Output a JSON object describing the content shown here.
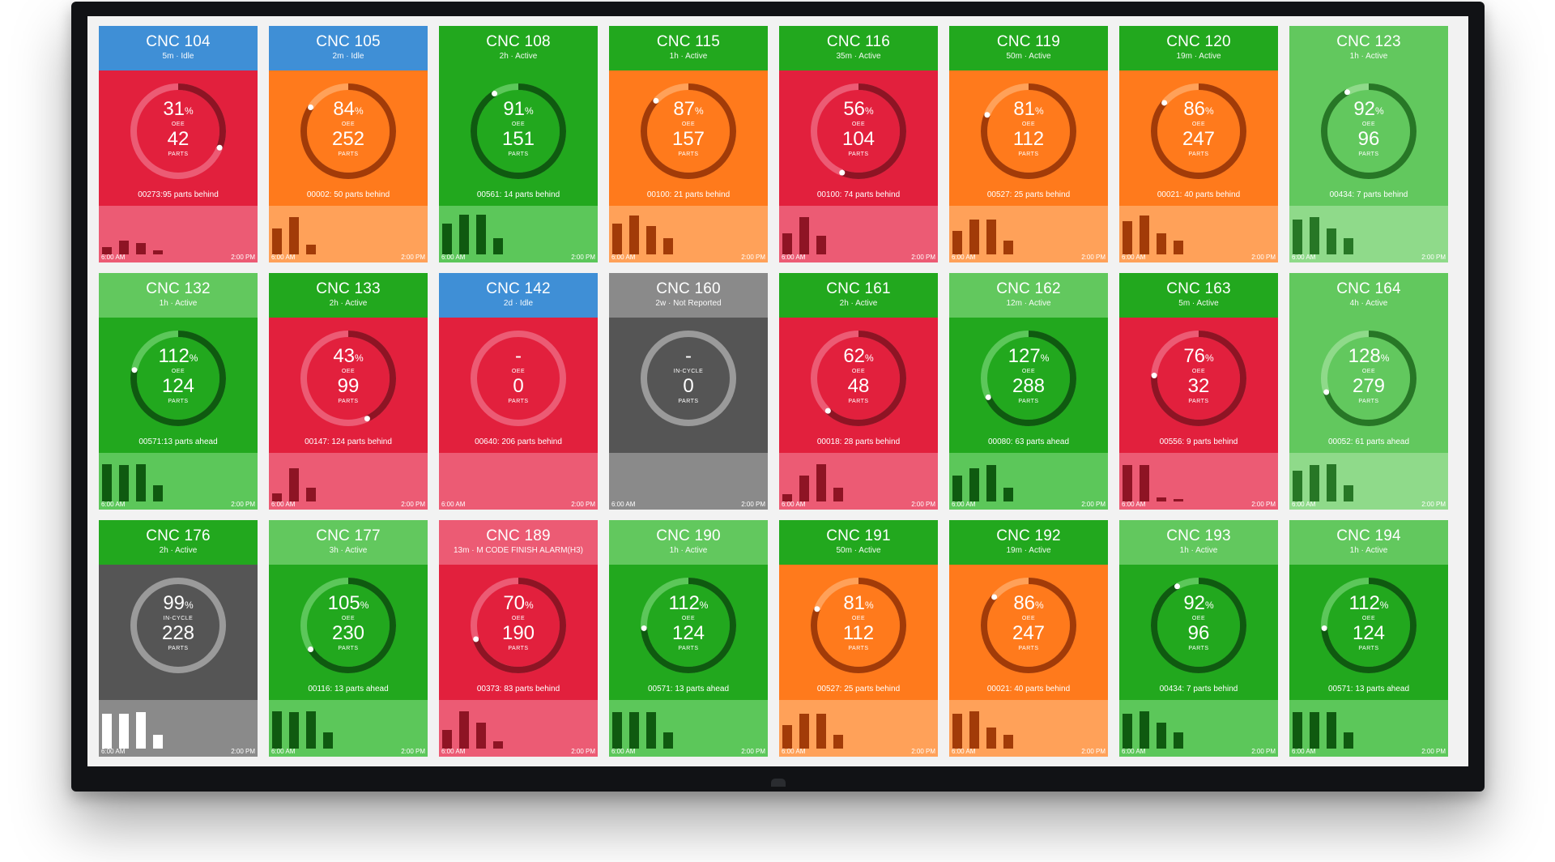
{
  "palette": {
    "red": [
      "#e2203d",
      "#ec5b74",
      "#8e1424"
    ],
    "orange": [
      "#ff7a1c",
      "#ffa159",
      "#a23b08"
    ],
    "green": [
      "#22a81e",
      "#5cc75a",
      "#0f5a10"
    ],
    "lightgreen": [
      "#62c85e",
      "#8fda8a",
      "#277726"
    ],
    "blue": [
      "#3f8fd6"
    ],
    "gray": [
      "#555555",
      "#8a8a8a",
      "#ffffff"
    ]
  },
  "tiles": [
    {
      "name": "CNC 104",
      "status": "5m · Idle",
      "header": "blue",
      "body": "red",
      "oee": "31",
      "oee_label": "OEE",
      "parts": "42",
      "parts_label": "PARTS",
      "behind": "00273:95 parts behind",
      "progress": 0.31,
      "bars": [
        0.15,
        0.3,
        0.25,
        0.08
      ],
      "start": "6:00 AM",
      "end": "2:00 PM"
    },
    {
      "name": "CNC 105",
      "status": "2m · Idle",
      "header": "blue",
      "body": "orange",
      "oee": "84",
      "oee_label": "OEE",
      "parts": "252",
      "parts_label": "PARTS",
      "behind": "00002: 50 parts behind",
      "progress": 0.84,
      "bars": [
        0.55,
        0.8,
        0.2,
        0
      ],
      "start": "6:00 AM",
      "end": "2:00 PM"
    },
    {
      "name": "CNC 108",
      "status": "2h · Active",
      "header": "green",
      "body": "green",
      "oee": "91",
      "oee_label": "OEE",
      "parts": "151",
      "parts_label": "PARTS",
      "behind": "00561: 14 parts behind",
      "progress": 0.91,
      "bars": [
        0.65,
        0.85,
        0.85,
        0.35
      ],
      "start": "6:00 AM",
      "end": "2:00 PM"
    },
    {
      "name": "CNC 115",
      "status": "1h · Active",
      "header": "green",
      "body": "orange",
      "oee": "87",
      "oee_label": "OEE",
      "parts": "157",
      "parts_label": "PARTS",
      "behind": "00100: 21 parts behind",
      "progress": 0.87,
      "bars": [
        0.65,
        0.82,
        0.6,
        0.35
      ],
      "start": "6:00 AM",
      "end": "2:00 PM"
    },
    {
      "name": "CNC 116",
      "status": "35m · Active",
      "header": "green",
      "body": "red",
      "oee": "56",
      "oee_label": "OEE",
      "parts": "104",
      "parts_label": "PARTS",
      "behind": "00100: 74 parts behind",
      "progress": 0.56,
      "bars": [
        0.45,
        0.8,
        0.4,
        0
      ],
      "start": "6:00 AM",
      "end": "2:00 PM"
    },
    {
      "name": "CNC 119",
      "status": "50m · Active",
      "header": "green",
      "body": "orange",
      "oee": "81",
      "oee_label": "OEE",
      "parts": "112",
      "parts_label": "PARTS",
      "behind": "00527: 25 parts behind",
      "progress": 0.81,
      "bars": [
        0.5,
        0.75,
        0.75,
        0.3
      ],
      "start": "6:00 AM",
      "end": "2:00 PM"
    },
    {
      "name": "CNC 120",
      "status": "19m · Active",
      "header": "green",
      "body": "orange",
      "oee": "86",
      "oee_label": "OEE",
      "parts": "247",
      "parts_label": "PARTS",
      "behind": "00021: 40 parts behind",
      "progress": 0.86,
      "bars": [
        0.7,
        0.82,
        0.45,
        0.3
      ],
      "start": "6:00 AM",
      "end": "2:00 PM"
    },
    {
      "name": "CNC 123",
      "status": "1h · Active",
      "header": "lightgreen",
      "body": "lightgreen",
      "oee": "92",
      "oee_label": "OEE",
      "parts": "96",
      "parts_label": "PARTS",
      "behind": "00434: 7 parts behind",
      "progress": 0.92,
      "bars": [
        0.75,
        0.8,
        0.55,
        0.35
      ],
      "start": "6:00 AM",
      "end": "2:00 PM"
    },
    {
      "name": "CNC 132",
      "status": "1h · Active",
      "header": "lightgreen",
      "body": "green",
      "oee": "112",
      "oee_label": "OEE",
      "parts": "124",
      "parts_label": "PARTS",
      "behind": "00571:13 parts ahead",
      "progress": 0.78,
      "bars": [
        0.8,
        0.78,
        0.8,
        0.35
      ],
      "start": "6:00 AM",
      "end": "2:00 PM"
    },
    {
      "name": "CNC 133",
      "status": "2h · Active",
      "header": "green",
      "body": "red",
      "oee": "43",
      "oee_label": "OEE",
      "parts": "99",
      "parts_label": "PARTS",
      "behind": "00147: 124 parts behind",
      "progress": 0.43,
      "bars": [
        0.18,
        0.7,
        0.3,
        0
      ],
      "start": "6:00 AM",
      "end": "2:00 PM"
    },
    {
      "name": "CNC 142",
      "status": "2d · Idle",
      "header": "blue",
      "body": "red",
      "oee": "-",
      "oee_label": "OEE",
      "parts": "0",
      "parts_label": "PARTS",
      "behind": "00640: 206 parts behind",
      "progress": 0,
      "bars": [
        0,
        0,
        0,
        0
      ],
      "start": "6:00 AM",
      "end": "2:00 PM"
    },
    {
      "name": "CNC 160",
      "status": "2w · Not Reported",
      "header": "gray2",
      "body": "gray",
      "oee": "-",
      "oee_label": "IN-CYCLE",
      "parts": "0",
      "parts_label": "PARTS",
      "behind": "",
      "progress": 0,
      "bars": [
        0,
        0,
        0,
        0
      ],
      "start": "6:00 AM",
      "end": "2:00 PM"
    },
    {
      "name": "CNC 161",
      "status": "2h · Active",
      "header": "green",
      "body": "red",
      "oee": "62",
      "oee_label": "OEE",
      "parts": "48",
      "parts_label": "PARTS",
      "behind": "00018: 28 parts behind",
      "progress": 0.62,
      "bars": [
        0.15,
        0.55,
        0.8,
        0.3
      ],
      "start": "6:00 AM",
      "end": "2:00 PM"
    },
    {
      "name": "CNC 162",
      "status": "12m · Active",
      "header": "lightgreen",
      "body": "green",
      "oee": "127",
      "oee_label": "OEE",
      "parts": "288",
      "parts_label": "PARTS",
      "behind": "00080: 63 parts ahead",
      "progress": 0.68,
      "bars": [
        0.55,
        0.7,
        0.78,
        0.3
      ],
      "start": "6:00 AM",
      "end": "2:00 PM"
    },
    {
      "name": "CNC 163",
      "status": "5m · Active",
      "header": "green",
      "body": "red",
      "oee": "76",
      "oee_label": "OEE",
      "parts": "32",
      "parts_label": "PARTS",
      "behind": "00556: 9 parts behind",
      "progress": 0.76,
      "bars": [
        0.78,
        0.78,
        0.08,
        0.05
      ],
      "start": "6:00 AM",
      "end": "2:00 PM"
    },
    {
      "name": "CNC 164",
      "status": "4h · Active",
      "header": "lightgreen",
      "body": "lightgreen",
      "oee": "128",
      "oee_label": "OEE",
      "parts": "279",
      "parts_label": "PARTS",
      "behind": "00052: 61 parts ahead",
      "progress": 0.7,
      "bars": [
        0.65,
        0.78,
        0.8,
        0.35
      ],
      "start": "6:00 AM",
      "end": "2:00 PM"
    },
    {
      "name": "CNC 176",
      "status": "2h · Active",
      "header": "green",
      "body": "gray",
      "oee": "99",
      "oee_label": "IN-CYCLE",
      "parts": "228",
      "parts_label": "PARTS",
      "behind": "",
      "progress": 0,
      "bars": [
        0.75,
        0.75,
        0.78,
        0.3
      ],
      "start": "6:00 AM",
      "end": "2:00 PM"
    },
    {
      "name": "CNC 177",
      "status": "3h · Active",
      "header": "lightgreen",
      "body": "green",
      "oee": "105",
      "oee_label": "OEE",
      "parts": "230",
      "parts_label": "PARTS",
      "behind": "00116: 13 parts ahead",
      "progress": 0.66,
      "bars": [
        0.8,
        0.78,
        0.8,
        0.35
      ],
      "start": "6:00 AM",
      "end": "2:00 PM"
    },
    {
      "name": "CNC 189",
      "status": "13m · M CODE FINISH ALARM(H3)",
      "header": "red2",
      "body": "red",
      "oee": "70",
      "oee_label": "OEE",
      "parts": "190",
      "parts_label": "PARTS",
      "behind": "00373: 83 parts behind",
      "progress": 0.7,
      "bars": [
        0.4,
        0.8,
        0.55,
        0.15
      ],
      "start": "6:00 AM",
      "end": "2:00 PM"
    },
    {
      "name": "CNC 190",
      "status": "1h · Active",
      "header": "lightgreen",
      "body": "green",
      "oee": "112",
      "oee_label": "OEE",
      "parts": "124",
      "parts_label": "PARTS",
      "behind": "00571: 13 parts ahead",
      "progress": 0.74,
      "bars": [
        0.78,
        0.78,
        0.78,
        0.35
      ],
      "start": "6:00 AM",
      "end": "2:00 PM"
    },
    {
      "name": "CNC 191",
      "status": "50m · Active",
      "header": "green",
      "body": "orange",
      "oee": "81",
      "oee_label": "OEE",
      "parts": "112",
      "parts_label": "PARTS",
      "behind": "00527: 25 parts behind",
      "progress": 0.81,
      "bars": [
        0.5,
        0.75,
        0.75,
        0.3
      ],
      "start": "6:00 AM",
      "end": "2:00 PM"
    },
    {
      "name": "CNC 192",
      "status": "19m · Active",
      "header": "green",
      "body": "orange",
      "oee": "86",
      "oee_label": "OEE",
      "parts": "247",
      "parts_label": "PARTS",
      "behind": "00021: 40 parts behind",
      "progress": 0.86,
      "bars": [
        0.75,
        0.8,
        0.45,
        0.3
      ],
      "start": "6:00 AM",
      "end": "2:00 PM"
    },
    {
      "name": "CNC 193",
      "status": "1h · Active",
      "header": "lightgreen",
      "body": "green",
      "oee": "92",
      "oee_label": "OEE",
      "parts": "96",
      "parts_label": "PARTS",
      "behind": "00434: 7 parts behind",
      "progress": 0.92,
      "bars": [
        0.75,
        0.8,
        0.55,
        0.35
      ],
      "start": "6:00 AM",
      "end": "2:00 PM"
    },
    {
      "name": "CNC 194",
      "status": "1h · Active",
      "header": "lightgreen",
      "body": "green",
      "oee": "112",
      "oee_label": "OEE",
      "parts": "124",
      "parts_label": "PARTS",
      "behind": "00571: 13 parts ahead",
      "progress": 0.74,
      "bars": [
        0.78,
        0.78,
        0.78,
        0.35
      ],
      "start": "6:00 AM",
      "end": "2:00 PM"
    }
  ]
}
